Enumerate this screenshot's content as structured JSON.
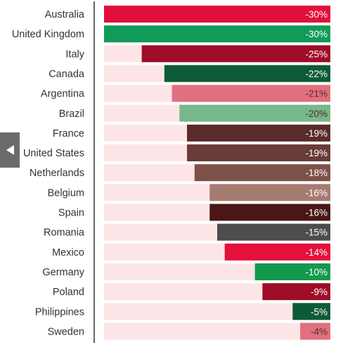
{
  "chart_data": {
    "type": "bar",
    "orientation": "horizontal",
    "categories": [
      "Australia",
      "United Kingdom",
      "Italy",
      "Canada",
      "Argentina",
      "Brazil",
      "France",
      "United States",
      "Netherlands",
      "Belgium",
      "Spain",
      "Romania",
      "Mexico",
      "Germany",
      "Poland",
      "Philippines",
      "Sweden"
    ],
    "values": [
      -30,
      -30,
      -25,
      -22,
      -21,
      -20,
      -19,
      -19,
      -18,
      -16,
      -16,
      -15,
      -14,
      -10,
      -9,
      -5,
      -4
    ],
    "labels": [
      "-30%",
      "-30%",
      "-25%",
      "-22%",
      "-21%",
      "-20%",
      "-19%",
      "-19%",
      "-18%",
      "-16%",
      "-16%",
      "-15%",
      "-14%",
      "-10%",
      "-9%",
      "-5%",
      "-4%"
    ],
    "colors": [
      "#e0103a",
      "#119a58",
      "#9e0c28",
      "#0c5b36",
      "#e0707e",
      "#76b88a",
      "#5a2b2a",
      "#6b3b38",
      "#7c5248",
      "#a57b70",
      "#4a1616",
      "#4d4d4d",
      "#e5103c",
      "#13994d",
      "#9e0c28",
      "#0c5b36",
      "#e0707e"
    ],
    "light_label": [
      false,
      false,
      false,
      false,
      true,
      true,
      false,
      false,
      false,
      false,
      false,
      false,
      false,
      false,
      false,
      false,
      true
    ],
    "xlim": [
      -30,
      0
    ],
    "track_color": "#fde5e7",
    "axis_color": "#333333",
    "value_format": "percent"
  },
  "nav": {
    "icon": "chevron-left-icon"
  }
}
